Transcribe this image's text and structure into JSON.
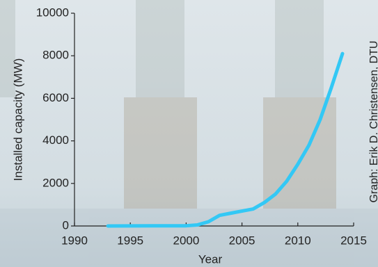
{
  "chart_data": {
    "type": "line",
    "x": [
      1993,
      1995,
      1997,
      2000,
      2001,
      2002,
      2003,
      2004,
      2005,
      2006,
      2007,
      2008,
      2009,
      2010,
      2011,
      2012,
      2013,
      2014
    ],
    "series": [
      {
        "color": "#33c8f5",
        "values": [
          0,
          5,
          10,
          10,
          50,
          200,
          500,
          600,
          700,
          800,
          1100,
          1500,
          2100,
          2900,
          3800,
          5000,
          6500,
          8100
        ]
      }
    ],
    "xlim": [
      1990,
      2015
    ],
    "xticks": [
      1990,
      1995,
      2000,
      2005,
      2010,
      2015
    ],
    "ylim": [
      0,
      10000
    ],
    "yticks": [
      0,
      2000,
      4000,
      6000,
      8000,
      10000
    ],
    "x_label": "Year",
    "y_label": "Installed capacity (MW)",
    "annotation": "Graph: Erik D. Christensen, DTU"
  }
}
